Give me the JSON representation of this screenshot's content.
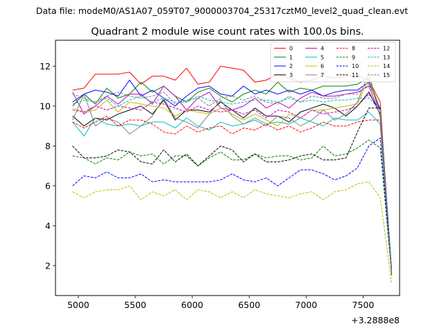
{
  "figure": {
    "suptitle": "Data file: modeM0/AS1A07_059T07_9000003704_25317cztM0_level2_quad_clean.evt"
  },
  "chart_data": {
    "type": "line",
    "title": "Quadrant 2 module wise count rates with 100.0s bins.",
    "xlabel": "",
    "ylabel": "",
    "x_offset_label": "+3.2888e8",
    "xlim": [
      4800,
      7820
    ],
    "ylim": [
      0.5,
      13.3
    ],
    "xticks": [
      5000,
      5500,
      6000,
      6500,
      7000,
      7500
    ],
    "yticks": [
      2,
      4,
      6,
      8,
      10,
      12
    ],
    "grid": false,
    "legend_position": "top-right",
    "x": [
      4950,
      5050,
      5150,
      5250,
      5350,
      5450,
      5550,
      5650,
      5750,
      5850,
      5950,
      6050,
      6150,
      6250,
      6350,
      6450,
      6550,
      6650,
      6750,
      6850,
      6950,
      7050,
      7150,
      7250,
      7350,
      7450,
      7550,
      7650,
      7750
    ],
    "series": [
      {
        "name": "0",
        "color": "#ff0000",
        "dash": "solid",
        "values": [
          10.8,
          10.9,
          11.6,
          11.6,
          11.6,
          11.7,
          11.1,
          11.5,
          11.5,
          11.3,
          11.9,
          11.1,
          11.2,
          12.0,
          11.9,
          11.8,
          11.2,
          11.3,
          11.6,
          11.4,
          11.2,
          11.3,
          11.5,
          11.4,
          11.5,
          11.5,
          11.3,
          10.2,
          1.5
        ]
      },
      {
        "name": "1",
        "color": "#008000",
        "dash": "solid",
        "values": [
          10.0,
          10.6,
          10.1,
          10.9,
          10.4,
          10.6,
          11.2,
          10.7,
          11.0,
          10.5,
          10.2,
          10.7,
          10.9,
          10.5,
          10.2,
          10.6,
          10.8,
          10.6,
          11.2,
          10.7,
          10.9,
          10.8,
          11.0,
          11.0,
          11.0,
          11.1,
          11.4,
          9.8,
          1.8
        ]
      },
      {
        "name": "2",
        "color": "#0000ff",
        "dash": "solid",
        "values": [
          10.2,
          10.6,
          10.8,
          10.7,
          10.5,
          11.3,
          10.5,
          10.8,
          10.4,
          10.0,
          10.5,
          10.9,
          11.0,
          10.6,
          10.5,
          11.0,
          10.6,
          10.8,
          10.6,
          10.8,
          10.6,
          10.8,
          10.5,
          10.7,
          10.8,
          10.8,
          11.2,
          9.8,
          1.7
        ]
      },
      {
        "name": "3",
        "color": "#000000",
        "dash": "solid",
        "values": [
          9.5,
          9.0,
          9.4,
          9.3,
          9.6,
          9.8,
          10.0,
          9.6,
          10.3,
          9.3,
          9.8,
          9.8,
          9.7,
          10.2,
          9.8,
          9.4,
          9.9,
          9.5,
          9.5,
          9.2,
          9.7,
          9.9,
          10.1,
          9.9,
          9.5,
          10.0,
          10.7,
          9.6,
          1.6
        ]
      },
      {
        "name": "4",
        "color": "#bf00bf",
        "dash": "solid",
        "values": [
          10.7,
          9.6,
          10.0,
          10.5,
          10.1,
          10.6,
          10.6,
          10.1,
          11.0,
          10.5,
          9.8,
          10.4,
          10.7,
          9.9,
          9.8,
          10.0,
          10.4,
          9.9,
          10.2,
          9.9,
          10.4,
          10.7,
          10.5,
          10.5,
          10.6,
          10.7,
          11.0,
          9.5,
          1.6
        ]
      },
      {
        "name": "5",
        "color": "#00bfbf",
        "dash": "solid",
        "values": [
          9.2,
          8.5,
          9.4,
          9.1,
          9.0,
          9.1,
          9.0,
          9.2,
          9.2,
          8.9,
          9.4,
          9.0,
          8.8,
          9.2,
          9.0,
          9.1,
          9.4,
          9.1,
          9.2,
          9.1,
          9.4,
          9.2,
          9.0,
          9.4,
          9.3,
          9.3,
          9.7,
          9.1,
          1.6
        ]
      },
      {
        "name": "6",
        "color": "#bfbf00",
        "dash": "solid",
        "values": [
          9.9,
          9.7,
          9.8,
          10.3,
          9.7,
          10.2,
          10.1,
          10.0,
          9.9,
          9.5,
          9.8,
          9.7,
          9.6,
          9.9,
          9.6,
          9.3,
          9.6,
          9.3,
          9.0,
          9.6,
          9.4,
          9.8,
          9.8,
          9.9,
          10.0,
          10.1,
          11.4,
          9.5,
          1.6
        ]
      },
      {
        "name": "7",
        "color": "#808080",
        "dash": "solid",
        "values": [
          9.3,
          10.6,
          9.0,
          9.4,
          9.2,
          8.6,
          9.0,
          9.5,
          10.4,
          9.4,
          9.2,
          8.9,
          9.6,
          10.3,
          9.5,
          9.1,
          9.3,
          9.0,
          9.5,
          9.4,
          9.0,
          9.3,
          9.8,
          9.3,
          9.6,
          10.2,
          11.7,
          9.4,
          1.6
        ]
      },
      {
        "name": "8",
        "color": "#ff0000",
        "dash": "dashed",
        "values": [
          9.2,
          8.9,
          9.2,
          9.5,
          9.0,
          9.3,
          9.3,
          9.1,
          8.7,
          8.6,
          9.0,
          8.7,
          8.9,
          9.0,
          8.6,
          8.9,
          8.8,
          9.1,
          8.8,
          9.0,
          8.7,
          8.9,
          9.2,
          9.0,
          9.0,
          9.2,
          9.3,
          9.3,
          1.6
        ]
      },
      {
        "name": "9",
        "color": "#008000",
        "dash": "dashed",
        "values": [
          7.5,
          7.4,
          7.1,
          7.4,
          7.3,
          7.7,
          7.5,
          7.6,
          7.1,
          7.5,
          7.5,
          7.0,
          7.4,
          7.7,
          7.3,
          7.3,
          7.6,
          7.4,
          7.5,
          7.5,
          7.3,
          7.4,
          8.0,
          7.5,
          7.6,
          7.9,
          8.3,
          7.9,
          1.6
        ]
      },
      {
        "name": "10",
        "color": "#0000ff",
        "dash": "dashed",
        "values": [
          6.0,
          6.5,
          6.4,
          6.7,
          6.4,
          6.4,
          6.6,
          6.2,
          6.3,
          6.2,
          6.2,
          6.2,
          6.2,
          6.3,
          6.6,
          6.3,
          6.2,
          6.4,
          6.0,
          6.4,
          6.8,
          6.8,
          6.6,
          6.3,
          6.5,
          6.9,
          8.0,
          8.4,
          1.7
        ]
      },
      {
        "name": "11",
        "color": "#000000",
        "dash": "dashed",
        "values": [
          8.0,
          7.4,
          7.4,
          7.5,
          7.8,
          7.7,
          7.2,
          7.1,
          7.8,
          7.2,
          7.6,
          7.0,
          7.5,
          8.0,
          7.8,
          7.2,
          7.6,
          7.2,
          7.2,
          7.3,
          7.5,
          7.6,
          7.3,
          7.3,
          7.4,
          8.7,
          9.9,
          9.9,
          1.8
        ]
      },
      {
        "name": "12",
        "color": "#bf00bf",
        "dash": "dashed",
        "values": [
          9.8,
          9.7,
          10.0,
          9.8,
          10.0,
          9.9,
          9.8,
          10.2,
          10.1,
          9.9,
          9.7,
          10.0,
          9.8,
          9.7,
          9.8,
          9.6,
          9.8,
          9.4,
          9.8,
          9.7,
          9.4,
          9.8,
          9.6,
          9.7,
          9.8,
          10.0,
          10.6,
          9.8,
          1.7
        ]
      },
      {
        "name": "13",
        "color": "#00bfbf",
        "dash": "dashed",
        "values": [
          10.1,
          10.3,
          10.2,
          10.4,
          10.0,
          10.3,
          10.5,
          10.2,
          10.4,
          10.2,
          10.2,
          10.5,
          10.3,
          10.2,
          10.1,
          10.2,
          10.3,
          10.3,
          10.2,
          10.4,
          10.2,
          10.3,
          10.2,
          10.3,
          10.3,
          10.4,
          10.4,
          9.8,
          1.7
        ]
      },
      {
        "name": "14",
        "color": "#bfbf00",
        "dash": "dashed",
        "values": [
          5.7,
          5.4,
          5.7,
          5.8,
          5.8,
          6.0,
          5.3,
          5.7,
          5.5,
          5.8,
          5.3,
          5.8,
          5.7,
          5.4,
          5.7,
          5.4,
          5.8,
          5.6,
          5.5,
          5.4,
          5.6,
          5.7,
          5.3,
          5.7,
          5.8,
          6.1,
          6.2,
          5.4,
          1.1
        ]
      },
      {
        "name": "15",
        "color": "#808080",
        "dash": "dashed",
        "values": [
          10.6,
          10.4,
          10.2,
          10.5,
          10.7,
          10.5,
          10.4,
          10.5,
          10.7,
          10.1,
          10.3,
          10.4,
          10.0,
          10.4,
          10.5,
          10.3,
          10.5,
          10.2,
          10.1,
          10.5,
          10.2,
          10.5,
          10.4,
          10.4,
          10.6,
          10.6,
          11.1,
          9.9,
          1.7
        ]
      }
    ]
  }
}
